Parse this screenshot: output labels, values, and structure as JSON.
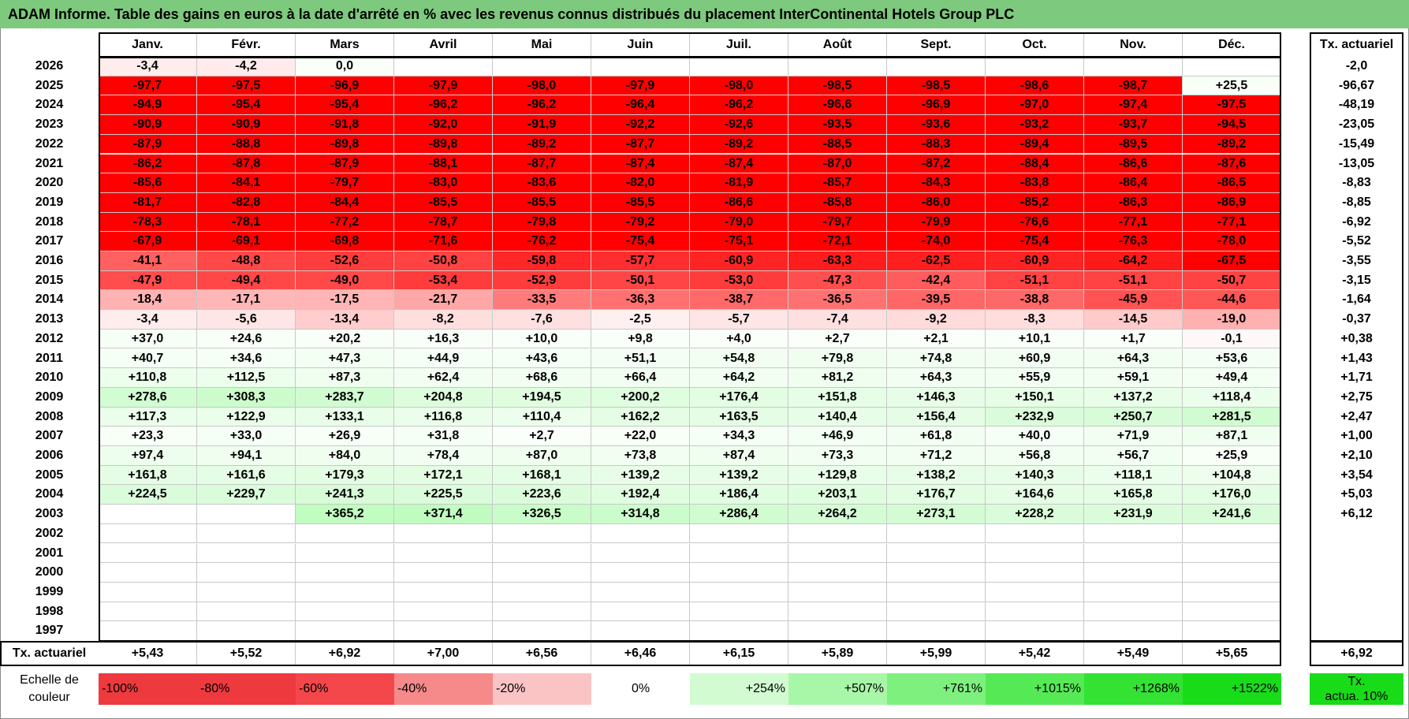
{
  "title": "ADAM Informe. Table des gains en euros à la date d'arrêté en % avec les revenus connus distribués du placement InterContinental Hotels Group PLC",
  "chart_data": {
    "type": "table",
    "months": [
      "Janv.",
      "Févr.",
      "Mars",
      "Avril",
      "Mai",
      "Juin",
      "Juil.",
      "Août",
      "Sept.",
      "Oct.",
      "Nov.",
      "Déc."
    ],
    "annual_header": "Tx. actuariel",
    "rows": [
      {
        "year": "2026",
        "values": [
          "-3,4",
          "-4,2",
          "0,0",
          "",
          "",
          "",
          "",
          "",
          "",
          "",
          "",
          ""
        ],
        "annual": "-2,0"
      },
      {
        "year": "2025",
        "values": [
          "-97,7",
          "-97,5",
          "-96,9",
          "-97,9",
          "-98,0",
          "-97,9",
          "-98,0",
          "-98,5",
          "-98,5",
          "-98,6",
          "-98,7",
          "+25,5"
        ],
        "annual": "-96,67"
      },
      {
        "year": "2024",
        "values": [
          "-94,9",
          "-95,4",
          "-95,4",
          "-96,2",
          "-96,2",
          "-96,4",
          "-96,2",
          "-96,6",
          "-96,9",
          "-97,0",
          "-97,4",
          "-97,5"
        ],
        "annual": "-48,19"
      },
      {
        "year": "2023",
        "values": [
          "-90,9",
          "-90,9",
          "-91,8",
          "-92,0",
          "-91,9",
          "-92,2",
          "-92,6",
          "-93,5",
          "-93,6",
          "-93,2",
          "-93,7",
          "-94,5"
        ],
        "annual": "-23,05"
      },
      {
        "year": "2022",
        "values": [
          "-87,9",
          "-88,8",
          "-89,8",
          "-89,8",
          "-89,2",
          "-87,7",
          "-89,2",
          "-88,5",
          "-88,3",
          "-89,4",
          "-89,5",
          "-89,2"
        ],
        "annual": "-15,49"
      },
      {
        "year": "2021",
        "values": [
          "-86,2",
          "-87,8",
          "-87,9",
          "-88,1",
          "-87,7",
          "-87,4",
          "-87,4",
          "-87,0",
          "-87,2",
          "-88,4",
          "-86,6",
          "-87,6"
        ],
        "annual": "-13,05"
      },
      {
        "year": "2020",
        "values": [
          "-85,6",
          "-84,1",
          "-79,7",
          "-83,0",
          "-83,6",
          "-82,0",
          "-81,9",
          "-85,7",
          "-84,3",
          "-83,8",
          "-86,4",
          "-86,5"
        ],
        "annual": "-8,83"
      },
      {
        "year": "2019",
        "values": [
          "-81,7",
          "-82,8",
          "-84,4",
          "-85,5",
          "-85,5",
          "-85,5",
          "-86,6",
          "-85,8",
          "-86,0",
          "-85,2",
          "-86,3",
          "-86,9"
        ],
        "annual": "-8,85"
      },
      {
        "year": "2018",
        "values": [
          "-78,3",
          "-78,1",
          "-77,2",
          "-78,7",
          "-79,8",
          "-79,2",
          "-79,0",
          "-79,7",
          "-79,9",
          "-76,6",
          "-77,1",
          "-77,1"
        ],
        "annual": "-6,92"
      },
      {
        "year": "2017",
        "values": [
          "-67,9",
          "-69,1",
          "-69,8",
          "-71,6",
          "-76,2",
          "-75,4",
          "-75,1",
          "-72,1",
          "-74,0",
          "-75,4",
          "-76,3",
          "-78,0"
        ],
        "annual": "-5,52"
      },
      {
        "year": "2016",
        "values": [
          "-41,1",
          "-48,8",
          "-52,6",
          "-50,8",
          "-59,8",
          "-57,7",
          "-60,9",
          "-63,3",
          "-62,5",
          "-60,9",
          "-64,2",
          "-67,5"
        ],
        "annual": "-3,55"
      },
      {
        "year": "2015",
        "values": [
          "-47,9",
          "-49,4",
          "-49,0",
          "-53,4",
          "-52,9",
          "-50,1",
          "-53,0",
          "-47,3",
          "-42,4",
          "-51,1",
          "-51,1",
          "-50,7"
        ],
        "annual": "-3,15"
      },
      {
        "year": "2014",
        "values": [
          "-18,4",
          "-17,1",
          "-17,5",
          "-21,7",
          "-33,5",
          "-36,3",
          "-38,7",
          "-36,5",
          "-39,5",
          "-38,8",
          "-45,9",
          "-44,6"
        ],
        "annual": "-1,64"
      },
      {
        "year": "2013",
        "values": [
          "-3,4",
          "-5,6",
          "-13,4",
          "-8,2",
          "-7,6",
          "-2,5",
          "-5,7",
          "-7,4",
          "-9,2",
          "-8,3",
          "-14,5",
          "-19,0"
        ],
        "annual": "-0,37"
      },
      {
        "year": "2012",
        "values": [
          "+37,0",
          "+24,6",
          "+20,2",
          "+16,3",
          "+10,0",
          "+9,8",
          "+4,0",
          "+2,7",
          "+2,1",
          "+10,1",
          "+1,7",
          "-0,1"
        ],
        "annual": "+0,38"
      },
      {
        "year": "2011",
        "values": [
          "+40,7",
          "+34,6",
          "+47,3",
          "+44,9",
          "+43,6",
          "+51,1",
          "+54,8",
          "+79,8",
          "+74,8",
          "+60,9",
          "+64,3",
          "+53,6"
        ],
        "annual": "+1,43"
      },
      {
        "year": "2010",
        "values": [
          "+110,8",
          "+112,5",
          "+87,3",
          "+62,4",
          "+68,6",
          "+66,4",
          "+64,2",
          "+81,2",
          "+64,3",
          "+55,9",
          "+59,1",
          "+49,4"
        ],
        "annual": "+1,71"
      },
      {
        "year": "2009",
        "values": [
          "+278,6",
          "+308,3",
          "+283,7",
          "+204,8",
          "+194,5",
          "+200,2",
          "+176,4",
          "+151,8",
          "+146,3",
          "+150,1",
          "+137,2",
          "+118,4"
        ],
        "annual": "+2,75"
      },
      {
        "year": "2008",
        "values": [
          "+117,3",
          "+122,9",
          "+133,1",
          "+116,8",
          "+110,4",
          "+162,2",
          "+163,5",
          "+140,4",
          "+156,4",
          "+232,9",
          "+250,7",
          "+281,5"
        ],
        "annual": "+2,47"
      },
      {
        "year": "2007",
        "values": [
          "+23,3",
          "+33,0",
          "+26,9",
          "+31,8",
          "+2,7",
          "+22,0",
          "+34,3",
          "+46,9",
          "+61,8",
          "+40,0",
          "+71,9",
          "+87,1"
        ],
        "annual": "+1,00"
      },
      {
        "year": "2006",
        "values": [
          "+97,4",
          "+94,1",
          "+84,0",
          "+78,4",
          "+87,0",
          "+73,8",
          "+87,4",
          "+73,3",
          "+71,2",
          "+56,8",
          "+56,7",
          "+25,9"
        ],
        "annual": "+2,10"
      },
      {
        "year": "2005",
        "values": [
          "+161,8",
          "+161,6",
          "+179,3",
          "+172,1",
          "+168,1",
          "+139,2",
          "+139,2",
          "+129,8",
          "+138,2",
          "+140,3",
          "+118,1",
          "+104,8"
        ],
        "annual": "+3,54"
      },
      {
        "year": "2004",
        "values": [
          "+224,5",
          "+229,7",
          "+241,3",
          "+225,5",
          "+223,6",
          "+192,4",
          "+186,4",
          "+203,1",
          "+176,7",
          "+164,6",
          "+165,8",
          "+176,0"
        ],
        "annual": "+5,03"
      },
      {
        "year": "2003",
        "values": [
          "",
          "",
          "+365,2",
          "+371,4",
          "+326,5",
          "+314,8",
          "+286,4",
          "+264,2",
          "+273,1",
          "+228,2",
          "+231,9",
          "+241,6"
        ],
        "annual": "+6,12"
      },
      {
        "year": "2002",
        "values": [
          "",
          "",
          "",
          "",
          "",
          "",
          "",
          "",
          "",
          "",
          "",
          ""
        ],
        "annual": ""
      },
      {
        "year": "2001",
        "values": [
          "",
          "",
          "",
          "",
          "",
          "",
          "",
          "",
          "",
          "",
          "",
          ""
        ],
        "annual": ""
      },
      {
        "year": "2000",
        "values": [
          "",
          "",
          "",
          "",
          "",
          "",
          "",
          "",
          "",
          "",
          "",
          ""
        ],
        "annual": ""
      },
      {
        "year": "1999",
        "values": [
          "",
          "",
          "",
          "",
          "",
          "",
          "",
          "",
          "",
          "",
          "",
          ""
        ],
        "annual": ""
      },
      {
        "year": "1998",
        "values": [
          "",
          "",
          "",
          "",
          "",
          "",
          "",
          "",
          "",
          "",
          "",
          ""
        ],
        "annual": ""
      },
      {
        "year": "1997",
        "values": [
          "",
          "",
          "",
          "",
          "",
          "",
          "",
          "",
          "",
          "",
          "",
          ""
        ],
        "annual": ""
      }
    ],
    "footer": {
      "label": "Tx. actuariel",
      "values": [
        "+5,43",
        "+5,52",
        "+6,92",
        "+7,00",
        "+6,56",
        "+6,46",
        "+6,15",
        "+5,89",
        "+5,99",
        "+5,42",
        "+5,49",
        "+5,65"
      ],
      "annual": "+6,92"
    },
    "legend": {
      "label_line1": "Echelle de",
      "label_line2": "couleur",
      "items": [
        {
          "text": "-100%",
          "color": "#ee3a3f"
        },
        {
          "text": "-80%",
          "color": "#ee3a3f"
        },
        {
          "text": "-60%",
          "color": "#f4474b"
        },
        {
          "text": "-40%",
          "color": "#f68a8a"
        },
        {
          "text": "-20%",
          "color": "#fbc4c4"
        },
        {
          "text": "0%",
          "color": "#ffffff"
        },
        {
          "text": "+254%",
          "color": "#d2fbd2"
        },
        {
          "text": "+507%",
          "color": "#a8f7a8"
        },
        {
          "text": "+761%",
          "color": "#7ef07e"
        },
        {
          "text": "+1015%",
          "color": "#55ea55"
        },
        {
          "text": "+1268%",
          "color": "#33e233"
        },
        {
          "text": "+1522%",
          "color": "#19dc19"
        }
      ],
      "annual_line1": "Tx.",
      "annual_line2": "actua. 10%",
      "annual_color": "#19dc19"
    }
  }
}
